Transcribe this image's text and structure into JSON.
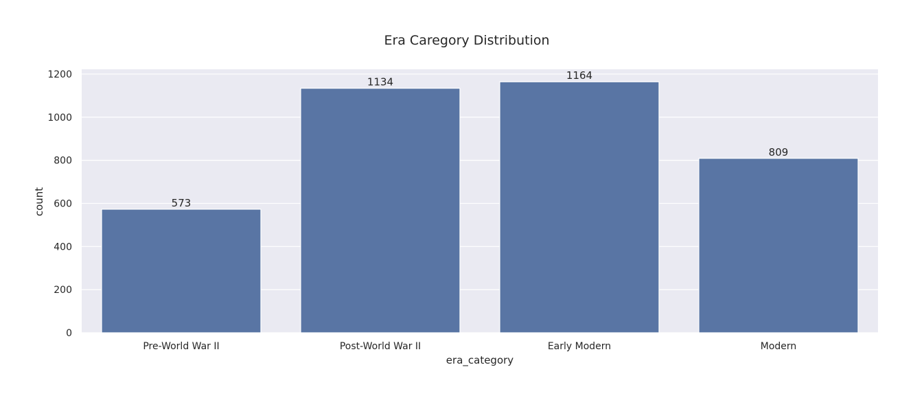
{
  "chart_data": {
    "type": "bar",
    "title": "Era Caregory Distribution",
    "xlabel": "era_category",
    "ylabel": "count",
    "categories": [
      "Pre-World War II",
      "Post-World War II",
      "Early Modern",
      "Modern"
    ],
    "values": [
      573,
      1134,
      1164,
      809
    ],
    "data_labels": [
      "573",
      "1134",
      "1164",
      "809"
    ],
    "yticks": [
      0,
      200,
      400,
      600,
      800,
      1000,
      1200
    ],
    "ylim": [
      0,
      1222
    ],
    "grid": true,
    "bar_color": "#5975a4",
    "background_color": "#eaeaf2"
  }
}
